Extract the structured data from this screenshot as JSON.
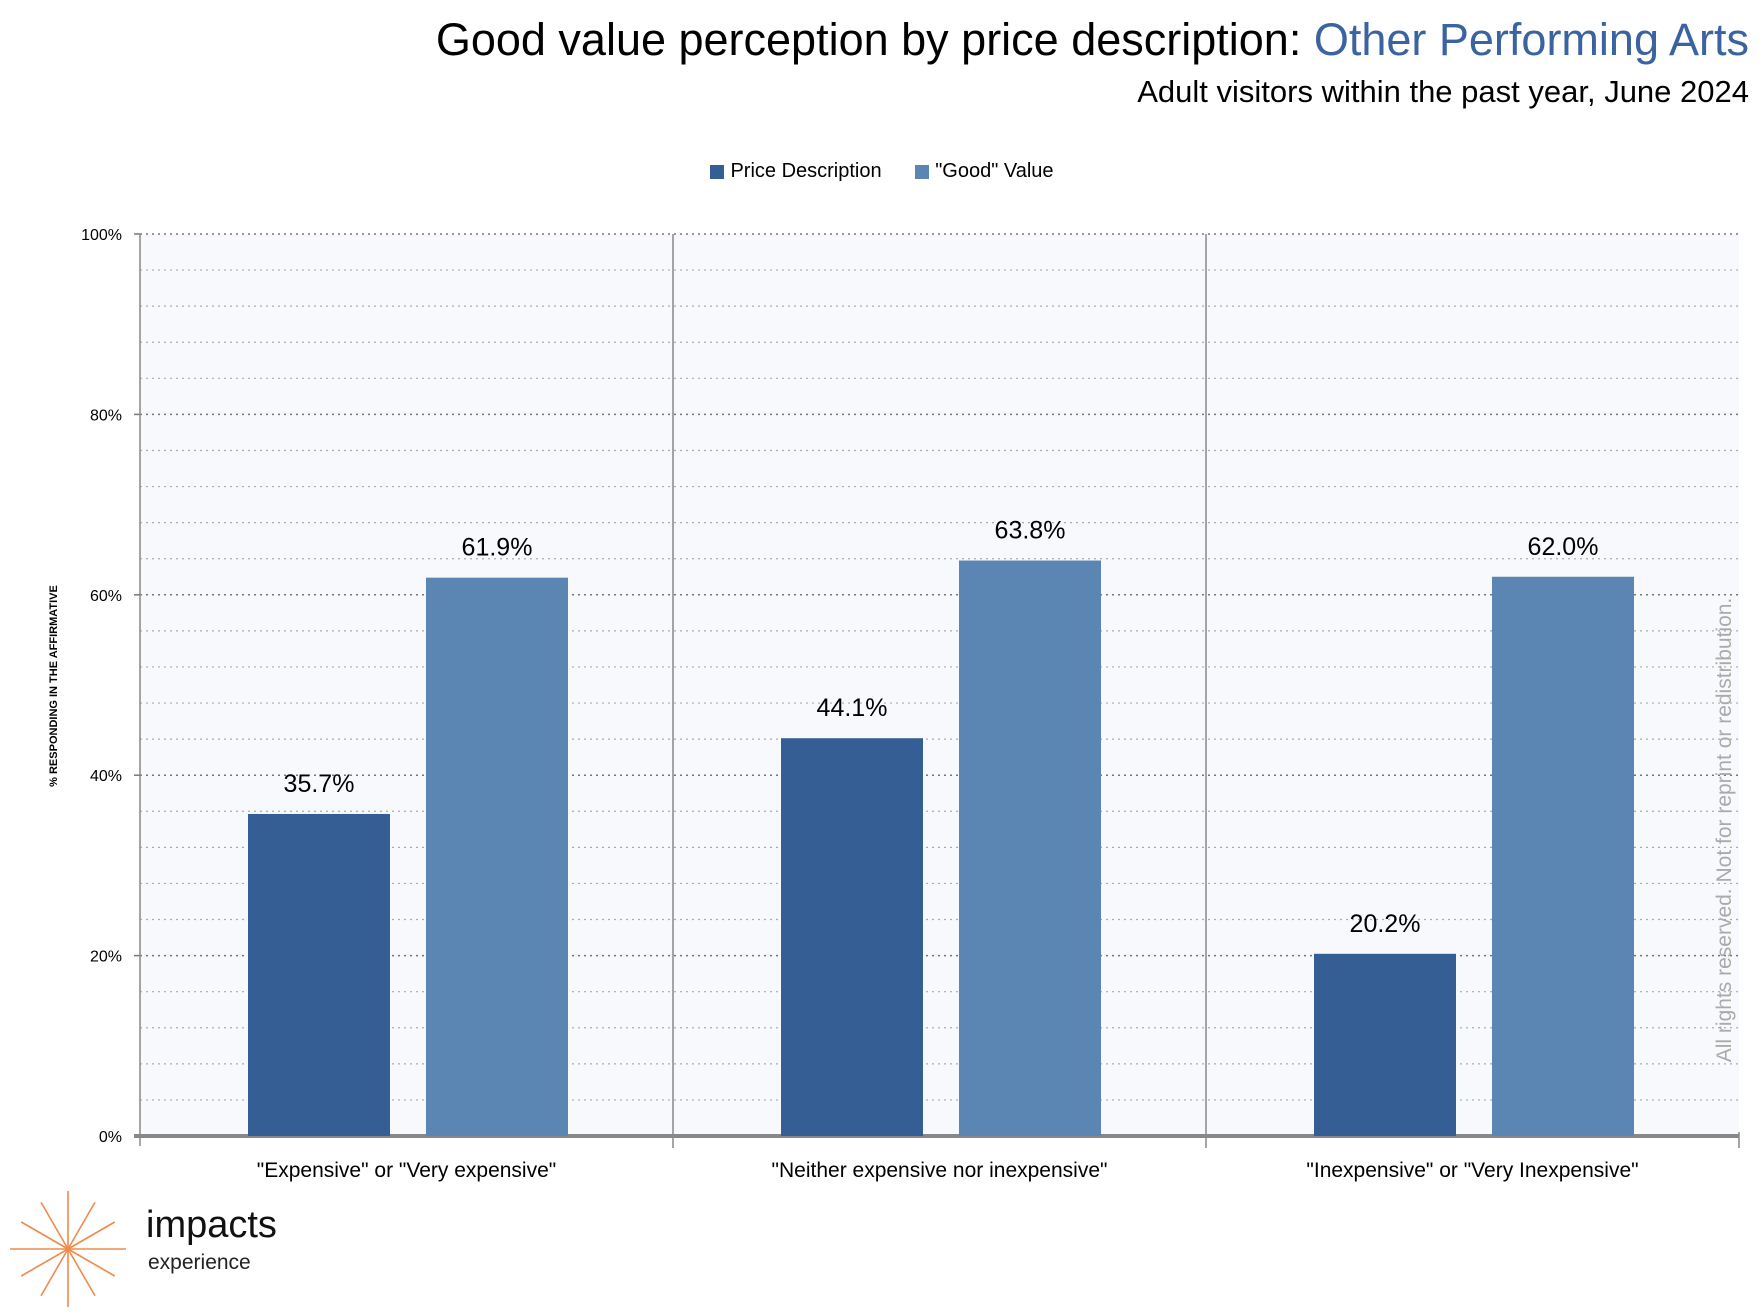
{
  "header": {
    "title_prefix": "Good value perception by price description: ",
    "title_highlight": "Other Performing Arts",
    "subtitle": "Adult visitors within the past year, June 2024"
  },
  "watermark": {
    "word": "impacts",
    "sub": "experience"
  },
  "rights_notice": "All rights reserved. Not for reprint or redistribution.",
  "logo": {
    "word": "impacts",
    "sub": "experience"
  },
  "colors": {
    "price": "#345e94",
    "good": "#5b86b3",
    "highlight": "#3a63a0",
    "logo": "#f08a4b"
  },
  "chart_data": {
    "type": "bar",
    "title": "Good value perception by price description: Other Performing Arts",
    "subtitle": "Adult visitors within the past year, June 2024",
    "categories": [
      "\"Expensive\" or \"Very expensive\"",
      "\"Neither expensive nor inexpensive\"",
      "\"Inexpensive\" or \"Very Inexpensive\""
    ],
    "series": [
      {
        "name": "Price Description",
        "values": [
          35.7,
          44.1,
          20.2
        ],
        "labels": [
          "35.7%",
          "44.1%",
          "20.2%"
        ]
      },
      {
        "name": "\"Good\" Value",
        "values": [
          61.9,
          63.8,
          62.0
        ],
        "labels": [
          "61.9%",
          "63.8%",
          "62.0%"
        ]
      }
    ],
    "xlabel": "",
    "ylabel": "% RESPONDING IN THE AFFIRMATIVE",
    "ylim": [
      0,
      100
    ],
    "yticks": [
      "0%",
      "20%",
      "40%",
      "60%",
      "80%",
      "100%"
    ],
    "grid": true,
    "legend_position": "top-center"
  }
}
